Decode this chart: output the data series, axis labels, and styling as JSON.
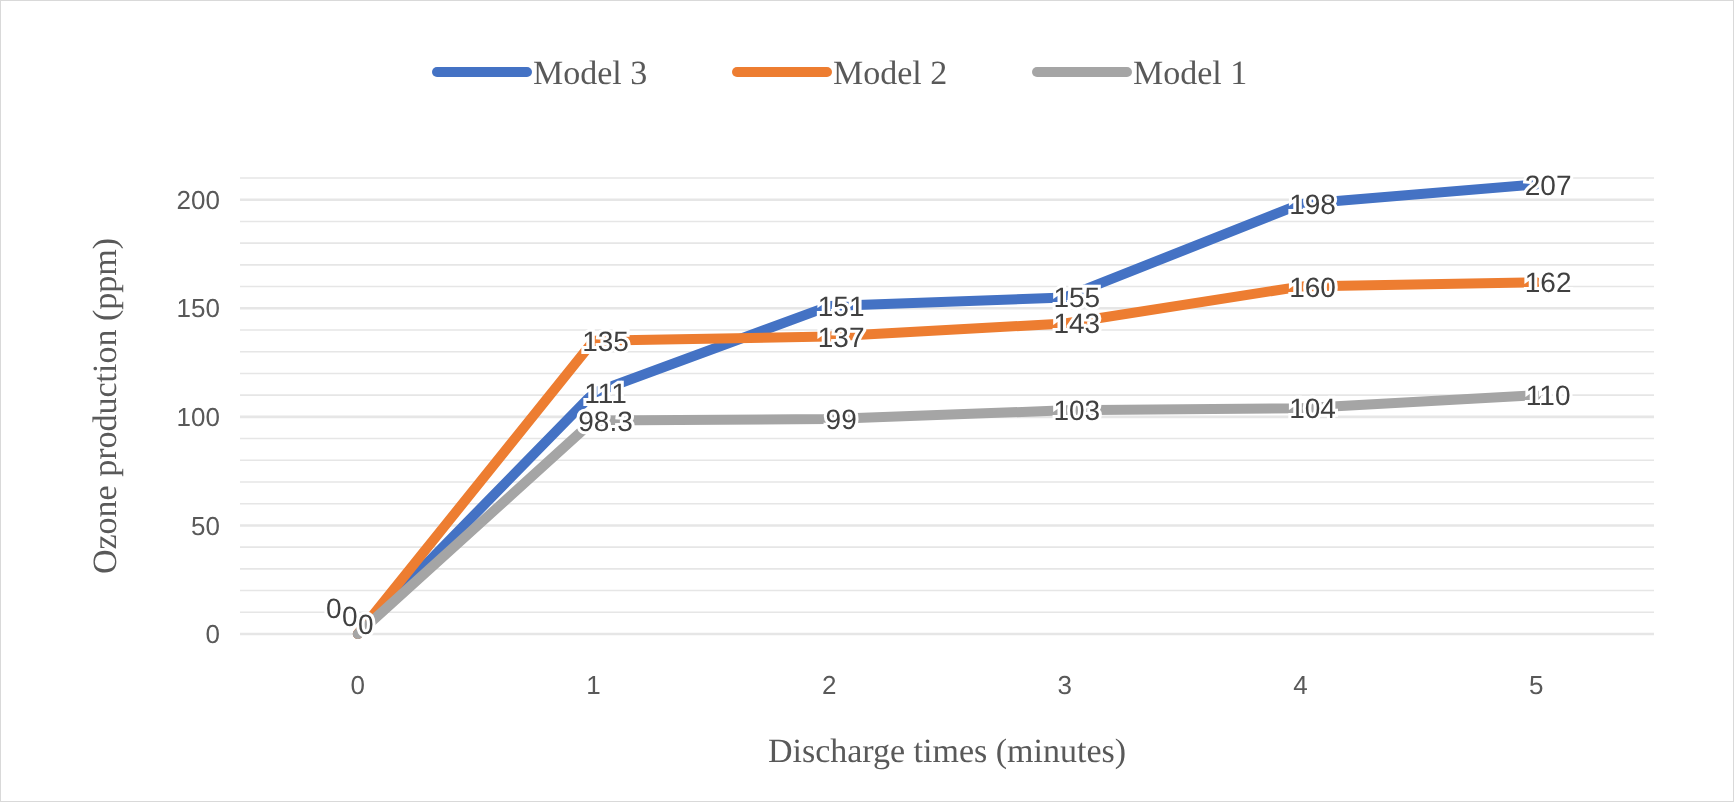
{
  "chart_data": {
    "type": "line",
    "xlabel": "Discharge times (minutes)",
    "ylabel": "Ozone production (ppm)",
    "categories": [
      "0",
      "1",
      "2",
      "3",
      "4",
      "5"
    ],
    "series": [
      {
        "name": "Model 3",
        "color": "#4472c4",
        "values": [
          0,
          111,
          151,
          155,
          198,
          207
        ]
      },
      {
        "name": "Model 2",
        "color": "#ed7d31",
        "values": [
          0,
          135,
          137,
          143,
          160,
          162
        ]
      },
      {
        "name": "Model 1",
        "color": "#a5a5a5",
        "values": [
          0,
          98.3,
          99,
          103,
          104,
          110
        ]
      }
    ],
    "ylim": [
      0,
      210
    ],
    "yticks": [
      0,
      {
        "value": 10,
        "label": null
      },
      {
        "value": 20,
        "label": null
      },
      {
        "value": 30,
        "label": null
      },
      {
        "value": 40,
        "label": null
      },
      50,
      {
        "value": 60,
        "label": null
      },
      {
        "value": 70,
        "label": null
      },
      {
        "value": 80,
        "label": null
      },
      {
        "value": 90,
        "label": null
      },
      100,
      {
        "value": 110,
        "label": null
      },
      {
        "value": 120,
        "label": null
      },
      {
        "value": 130,
        "label": null
      },
      {
        "value": 140,
        "label": null
      },
      150,
      {
        "value": 160,
        "label": null
      },
      {
        "value": 170,
        "label": null
      },
      {
        "value": 180,
        "label": null
      },
      {
        "value": 190,
        "label": null
      },
      200,
      {
        "value": 210,
        "label": null
      }
    ],
    "grid": "y",
    "legend": "top",
    "marker": "none",
    "line_style": "solid",
    "data_labels": true
  }
}
